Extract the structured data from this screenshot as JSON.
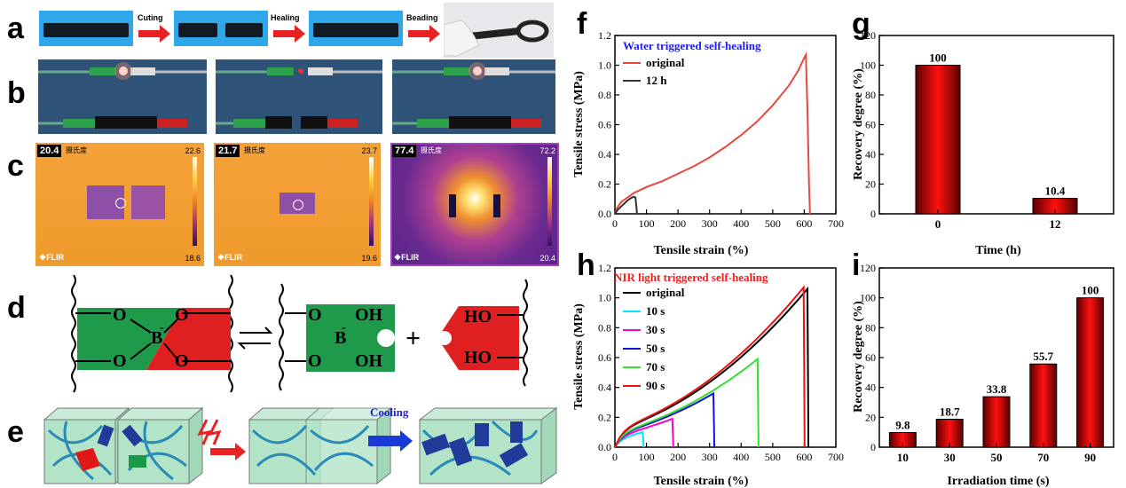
{
  "panel_letters": {
    "a": "a",
    "b": "b",
    "c": "c",
    "d": "d",
    "e": "e",
    "f": "f",
    "g": "g",
    "h": "h",
    "i": "i"
  },
  "panel_a": {
    "steps": [
      "Cuting",
      "Healing",
      "Beading"
    ]
  },
  "panel_c": {
    "frames": [
      {
        "temp": "20.4",
        "unit": "摄氏度",
        "max": "22.6",
        "min": "18.6",
        "brand": "❖FLIR"
      },
      {
        "temp": "21.7",
        "unit": "摄氏度",
        "max": "23.7",
        "min": "19.6",
        "brand": "❖FLIR"
      },
      {
        "temp": "77.4",
        "unit": "摄氏度",
        "max": "72.2",
        "min": "20.4",
        "brand": "❖FLIR"
      }
    ]
  },
  "panel_d": {
    "O": "O",
    "B": "B",
    "OH": "OH",
    "HO": "HO",
    "minus": "-",
    "plus": "+"
  },
  "panel_e": {
    "cooling": "Cooling"
  },
  "colors": {
    "red": "#e8473f",
    "black": "#000000",
    "cyan": "#00e5ff",
    "magenta": "#ff00c8",
    "blue": "#1010e0",
    "green": "#33dd33",
    "darkred": "#ee1111",
    "water_title": "#1a1aff",
    "nir_title": "#ff1a1a"
  },
  "chart_data": [
    {
      "id": "f",
      "type": "line",
      "title": "Water triggered self-healing",
      "xlabel": "Tensile strain (%)",
      "ylabel": "Tensile stress (MPa)",
      "xlim": [
        0,
        700
      ],
      "ylim": [
        0,
        1.2
      ],
      "xticks": [
        "0",
        "100",
        "200",
        "300",
        "400",
        "500",
        "600",
        "700"
      ],
      "yticks": [
        "0.0",
        "0.2",
        "0.4",
        "0.6",
        "0.8",
        "1.0",
        "1.2"
      ],
      "legend": "top-left",
      "series": [
        {
          "name": "original",
          "color": "#e8473f",
          "x": [
            0,
            5,
            10,
            20,
            40,
            60,
            80,
            100,
            150,
            200,
            250,
            300,
            350,
            400,
            450,
            500,
            550,
            580,
            600,
            605,
            610,
            615,
            618
          ],
          "y": [
            0,
            0.03,
            0.05,
            0.08,
            0.11,
            0.14,
            0.16,
            0.18,
            0.22,
            0.27,
            0.32,
            0.38,
            0.45,
            0.53,
            0.62,
            0.73,
            0.86,
            0.96,
            1.05,
            1.07,
            0.7,
            0.2,
            0
          ]
        },
        {
          "name": "12 h",
          "color": "#333333",
          "x": [
            0,
            10,
            20,
            30,
            40,
            50,
            60,
            65,
            68,
            70
          ],
          "y": [
            0,
            0.03,
            0.05,
            0.07,
            0.09,
            0.105,
            0.115,
            0.11,
            0.05,
            0
          ]
        }
      ]
    },
    {
      "id": "g",
      "type": "bar",
      "categories": [
        "0",
        "12"
      ],
      "values": [
        100,
        10.4
      ],
      "data_labels": [
        "100",
        "10.4"
      ],
      "xlabel": "Time (h)",
      "ylabel": "Recovery degree (%)",
      "ylim": [
        0,
        120
      ],
      "yticks": [
        "0",
        "20",
        "40",
        "60",
        "80",
        "100",
        "120"
      ]
    },
    {
      "id": "h",
      "type": "line",
      "title": "NIR light triggered self-healing",
      "xlabel": "Tensile strain (%)",
      "ylabel": "Tensile stress (MPa)",
      "xlim": [
        0,
        700
      ],
      "ylim": [
        0,
        1.2
      ],
      "xticks": [
        "0",
        "100",
        "200",
        "300",
        "400",
        "500",
        "600",
        "700"
      ],
      "yticks": [
        "0.0",
        "0.2",
        "0.4",
        "0.6",
        "0.8",
        "1.0",
        "1.2"
      ],
      "legend": "top-left",
      "series": [
        {
          "name": "original",
          "color": "#000000",
          "end": [
            610,
            1.06
          ]
        },
        {
          "name": "10 s",
          "color": "#00e5ff",
          "end": [
            88,
            0.1
          ]
        },
        {
          "name": "30 s",
          "color": "#ff00c8",
          "end": [
            182,
            0.19
          ]
        },
        {
          "name": "50 s",
          "color": "#1010e0",
          "end": [
            312,
            0.36
          ]
        },
        {
          "name": "70 s",
          "color": "#33dd33",
          "end": [
            452,
            0.59
          ]
        },
        {
          "name": "90 s",
          "color": "#ee1111",
          "end": [
            598,
            1.07
          ]
        }
      ]
    },
    {
      "id": "i",
      "type": "bar",
      "categories": [
        "10",
        "30",
        "50",
        "70",
        "90"
      ],
      "values": [
        9.8,
        18.7,
        33.8,
        55.7,
        100
      ],
      "data_labels": [
        "9.8",
        "18.7",
        "33.8",
        "55.7",
        "100"
      ],
      "xlabel": "Irradiation time (s)",
      "ylabel": "Recovery degree (%)",
      "ylim": [
        0,
        120
      ],
      "yticks": [
        "0",
        "20",
        "40",
        "60",
        "80",
        "100",
        "120"
      ]
    }
  ]
}
